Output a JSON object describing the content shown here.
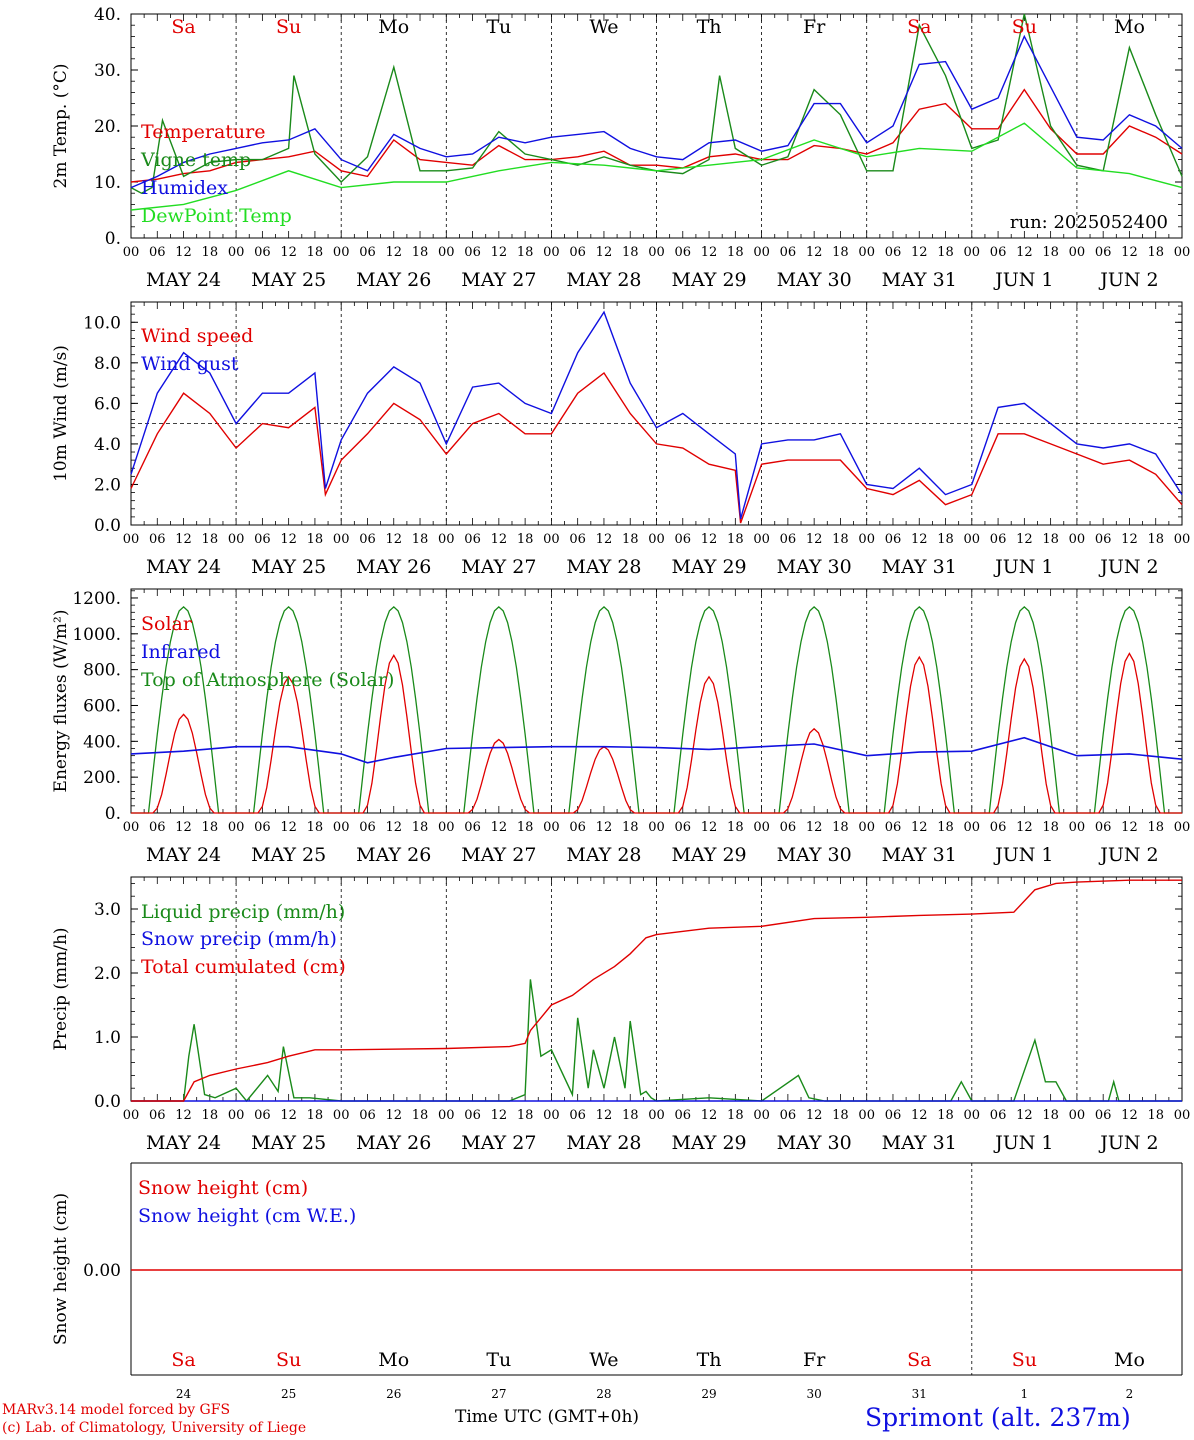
{
  "run_label": "run: 2025052400",
  "day_labels": [
    {
      "name": "Sa",
      "color": "#e00000"
    },
    {
      "name": "Su",
      "color": "#e00000"
    },
    {
      "name": "Mo",
      "color": "#000000"
    },
    {
      "name": "Tu",
      "color": "#000000"
    },
    {
      "name": "We",
      "color": "#000000"
    },
    {
      "name": "Th",
      "color": "#000000"
    },
    {
      "name": "Fr",
      "color": "#000000"
    },
    {
      "name": "Sa",
      "color": "#e00000"
    },
    {
      "name": "Su",
      "color": "#e00000"
    },
    {
      "name": "Mo",
      "color": "#000000"
    }
  ],
  "date_labels": [
    "MAY 24",
    "MAY 25",
    "MAY 26",
    "MAY 27",
    "MAY 28",
    "MAY 29",
    "MAY 30",
    "MAY 31",
    "JUN  1",
    "JUN  2"
  ],
  "hour_labels": [
    "00",
    "06",
    "12",
    "18"
  ],
  "day_numbers": [
    "24",
    "25",
    "26",
    "27",
    "28",
    "29",
    "30",
    "31",
    "1",
    "2"
  ],
  "footer": {
    "credit_line1": "MARv3.14 model forced by GFS",
    "credit_line2": "(c) Lab. of Climatology, University of Liege",
    "time_label": "Time UTC (GMT+0h)",
    "station": "Sprimont (alt. 237m)"
  },
  "colors": {
    "red": "#e00000",
    "green": "#1a8a1a",
    "blue": "#1010e0",
    "lightgreen": "#22dd22"
  },
  "chart_data": [
    {
      "type": "line",
      "ylabel": "2m Temp. (°C)",
      "ylim": [
        0,
        40
      ],
      "yticks": [
        "0.",
        "10.",
        "20.",
        "30.",
        "40."
      ],
      "yvals": [
        0,
        10,
        20,
        30,
        40
      ],
      "x_unit": "days since 2025-05-24 00 UTC",
      "series": [
        {
          "name": "Temperature",
          "color": "red",
          "x": [
            0,
            0.25,
            0.5,
            0.75,
            1,
            1.25,
            1.5,
            1.75,
            2,
            2.25,
            2.5,
            2.75,
            3,
            3.25,
            3.5,
            3.75,
            4,
            4.25,
            4.5,
            4.75,
            5,
            5.25,
            5.5,
            5.75,
            6,
            6.25,
            6.5,
            6.75,
            7,
            7.25,
            7.5,
            7.75,
            8,
            8.25,
            8.5,
            8.75,
            9,
            9.25,
            9.5,
            9.75,
            10
          ],
          "y": [
            10,
            10.5,
            11.5,
            12,
            13.5,
            14,
            14.5,
            15.5,
            12,
            11,
            17.5,
            14,
            13.5,
            13,
            16.5,
            14,
            14,
            14.5,
            15.5,
            13,
            13,
            12.5,
            14.5,
            15,
            14,
            14,
            16.5,
            16,
            15,
            17,
            23,
            24,
            19.5,
            19.5,
            26.5,
            19.5,
            15,
            15,
            20,
            18,
            15
          ]
        },
        {
          "name": "Vigne temp",
          "color": "green",
          "x": [
            0,
            0.1,
            0.2,
            0.3,
            0.5,
            0.75,
            1,
            1.25,
            1.5,
            1.55,
            1.75,
            2,
            2.25,
            2.5,
            2.75,
            3,
            3.25,
            3.5,
            3.75,
            4,
            4.25,
            4.5,
            4.75,
            5,
            5.25,
            5.5,
            5.6,
            5.75,
            6,
            6.25,
            6.5,
            6.75,
            7,
            7.25,
            7.5,
            7.75,
            8,
            8.25,
            8.5,
            8.75,
            9,
            9.25,
            9.5,
            9.75,
            10
          ],
          "y": [
            9,
            8,
            9,
            21,
            11,
            13.5,
            14,
            14,
            16,
            29,
            15,
            10,
            14.5,
            30.5,
            12,
            12,
            12.5,
            19,
            15,
            14,
            13,
            14.5,
            13,
            12,
            11.5,
            14,
            29,
            16,
            13,
            14.5,
            26.5,
            22,
            12,
            12,
            38,
            29,
            16,
            17.5,
            40,
            20,
            13,
            12,
            34,
            22,
            11
          ]
        },
        {
          "name": "Humidex",
          "color": "blue",
          "x": [
            0,
            0.25,
            0.5,
            0.75,
            1,
            1.25,
            1.5,
            1.75,
            2,
            2.25,
            2.5,
            2.75,
            3,
            3.25,
            3.5,
            3.75,
            4,
            4.25,
            4.5,
            4.75,
            5,
            5.25,
            5.5,
            5.75,
            6,
            6.25,
            6.5,
            6.75,
            7,
            7.25,
            7.5,
            7.75,
            8,
            8.25,
            8.5,
            8.75,
            9,
            9.25,
            9.5,
            9.75,
            10
          ],
          "y": [
            9,
            11,
            13.5,
            15,
            16,
            17,
            17.5,
            19.5,
            14,
            12,
            18.5,
            16,
            14.5,
            15,
            18,
            17,
            18,
            18.5,
            19,
            16,
            14.5,
            14,
            17,
            17.5,
            15.5,
            16.5,
            24,
            24,
            17,
            20,
            31,
            31.5,
            23,
            25,
            36,
            27,
            18,
            17.5,
            22,
            20,
            16
          ]
        },
        {
          "name": "DewPoint Temp",
          "color": "lightgreen",
          "x": [
            0,
            0.5,
            1,
            1.5,
            2,
            2.5,
            3,
            3.5,
            4,
            4.5,
            5,
            5.5,
            6,
            6.5,
            7,
            7.5,
            8,
            8.5,
            9,
            9.5,
            10
          ],
          "y": [
            5,
            6,
            8.5,
            12,
            9,
            10,
            10,
            12,
            13.5,
            13,
            12,
            13,
            14,
            17.5,
            14.5,
            16,
            15.5,
            20.5,
            12.5,
            11.5,
            9
          ]
        }
      ]
    },
    {
      "type": "line",
      "ylabel": "10m Wind (m/s)",
      "ylim": [
        0,
        11
      ],
      "yticks": [
        "0.0",
        "2.0",
        "4.0",
        "6.0",
        "8.0",
        "10.0"
      ],
      "yvals": [
        0,
        2,
        4,
        6,
        8,
        10
      ],
      "ref_line": 5,
      "x_unit": "days since 2025-05-24 00 UTC",
      "series": [
        {
          "name": "Wind speed",
          "color": "red",
          "x": [
            0,
            0.25,
            0.5,
            0.75,
            1,
            1.25,
            1.5,
            1.75,
            1.85,
            2,
            2.25,
            2.5,
            2.75,
            3,
            3.25,
            3.5,
            3.75,
            4,
            4.25,
            4.5,
            4.75,
            5,
            5.25,
            5.5,
            5.75,
            5.8,
            6,
            6.25,
            6.5,
            6.75,
            7,
            7.25,
            7.5,
            7.75,
            8,
            8.25,
            8.5,
            8.75,
            9,
            9.25,
            9.5,
            9.75,
            10
          ],
          "y": [
            1.8,
            4.5,
            6.5,
            5.5,
            3.8,
            5,
            4.8,
            5.8,
            1.5,
            3.2,
            4.5,
            6,
            5.2,
            3.5,
            5,
            5.5,
            4.5,
            4.5,
            6.5,
            7.5,
            5.5,
            4,
            3.8,
            3,
            2.7,
            0.1,
            3,
            3.2,
            3.2,
            3.2,
            1.8,
            1.5,
            2.2,
            1,
            1.5,
            4.5,
            4.5,
            4,
            3.5,
            3,
            3.2,
            2.5,
            1
          ]
        },
        {
          "name": "Wind gust",
          "color": "blue",
          "x": [
            0,
            0.25,
            0.5,
            0.75,
            1,
            1.25,
            1.5,
            1.75,
            1.85,
            2,
            2.25,
            2.5,
            2.75,
            3,
            3.25,
            3.5,
            3.75,
            4,
            4.25,
            4.5,
            4.75,
            5,
            5.25,
            5.5,
            5.75,
            5.8,
            6,
            6.25,
            6.5,
            6.75,
            7,
            7.25,
            7.5,
            7.75,
            8,
            8.25,
            8.5,
            8.75,
            9,
            9.25,
            9.5,
            9.75,
            10
          ],
          "y": [
            2.5,
            6.5,
            8.5,
            7.5,
            5,
            6.5,
            6.5,
            7.5,
            1.8,
            4.2,
            6.5,
            7.8,
            7,
            4,
            6.8,
            7,
            6,
            5.5,
            8.5,
            10.5,
            7,
            4.8,
            5.5,
            4.5,
            3.5,
            0.3,
            4,
            4.2,
            4.2,
            4.5,
            2,
            1.8,
            2.8,
            1.5,
            2,
            5.8,
            6,
            5,
            4,
            3.8,
            4,
            3.5,
            1.5
          ]
        }
      ]
    },
    {
      "type": "line",
      "ylabel": "Energy fluxes (W/m²)",
      "ylim": [
        0,
        1250
      ],
      "yticks": [
        "0.",
        "200.",
        "400.",
        "600.",
        "800.",
        "1000.",
        "1200."
      ],
      "yvals": [
        0,
        200,
        400,
        600,
        800,
        1000,
        1200
      ],
      "x_unit": "days since 2025-05-24 00 UTC",
      "toa_peak": 1150,
      "solar_peaks": [
        550,
        760,
        880,
        410,
        370,
        760,
        470,
        870,
        860,
        890
      ],
      "series": [
        {
          "name": "Solar",
          "color": "red"
        },
        {
          "name": "Infrared",
          "color": "blue",
          "x": [
            0,
            0.5,
            1,
            1.5,
            2,
            2.25,
            2.5,
            3,
            3.5,
            4,
            4.5,
            5,
            5.5,
            6,
            6.5,
            7,
            7.5,
            8,
            8.5,
            9,
            9.5,
            10
          ],
          "y": [
            330,
            345,
            370,
            370,
            330,
            280,
            310,
            360,
            365,
            370,
            370,
            365,
            355,
            370,
            385,
            320,
            340,
            345,
            420,
            320,
            330,
            300
          ]
        },
        {
          "name": "Top of Atmosphere (Solar)",
          "color": "green"
        }
      ]
    },
    {
      "type": "line",
      "ylabel": "Precip (mm/h)",
      "ylim": [
        0,
        3.5
      ],
      "yticks": [
        "0.0",
        "1.0",
        "2.0",
        "3.0"
      ],
      "yvals": [
        0,
        1,
        2,
        3
      ],
      "x_unit": "days since 2025-05-24 00 UTC",
      "series": [
        {
          "name": "Liquid precip (mm/h)",
          "color": "green",
          "x": [
            0,
            0.5,
            0.55,
            0.6,
            0.7,
            0.8,
            1,
            1.1,
            1.3,
            1.4,
            1.45,
            1.55,
            1.7,
            2,
            3,
            3.6,
            3.75,
            3.8,
            3.9,
            4,
            4.2,
            4.25,
            4.35,
            4.4,
            4.5,
            4.6,
            4.7,
            4.75,
            4.85,
            4.9,
            4.95,
            5,
            5.5,
            6,
            6.35,
            6.45,
            6.6,
            7,
            7.8,
            7.9,
            8,
            8.4,
            8.6,
            8.7,
            8.8,
            8.9,
            9,
            9.3,
            9.35,
            9.4,
            10
          ],
          "y": [
            0,
            0,
            0.7,
            1.2,
            0.1,
            0.05,
            0.2,
            0,
            0.4,
            0.15,
            0.85,
            0.05,
            0.05,
            0,
            0,
            0,
            0.1,
            1.9,
            0.7,
            0.8,
            0.1,
            1.3,
            0.2,
            0.8,
            0.2,
            1,
            0.2,
            1.25,
            0.1,
            0.15,
            0.05,
            0,
            0.05,
            0,
            0.4,
            0.05,
            0,
            0,
            0,
            0.3,
            0,
            0,
            0.95,
            0.3,
            0.3,
            0,
            0,
            0,
            0.3,
            0,
            0
          ]
        },
        {
          "name": "Snow precip (mm/h)",
          "color": "blue",
          "x": [
            0,
            10
          ],
          "y": [
            0,
            0
          ]
        },
        {
          "name": "Total cumulated (cm)",
          "color": "red",
          "x": [
            0,
            0.5,
            0.6,
            0.75,
            1,
            1.3,
            1.5,
            1.75,
            2,
            3,
            3.6,
            3.75,
            3.8,
            4,
            4.2,
            4.4,
            4.6,
            4.75,
            4.9,
            5,
            5.5,
            6,
            6.5,
            7,
            7.5,
            8,
            8.4,
            8.6,
            8.8,
            9,
            9.5,
            10
          ],
          "y": [
            0,
            0,
            0.3,
            0.4,
            0.5,
            0.6,
            0.7,
            0.8,
            0.8,
            0.82,
            0.85,
            0.9,
            1.1,
            1.5,
            1.65,
            1.9,
            2.1,
            2.3,
            2.55,
            2.6,
            2.7,
            2.73,
            2.85,
            2.87,
            2.9,
            2.92,
            2.95,
            3.3,
            3.4,
            3.42,
            3.45,
            3.45
          ]
        }
      ]
    },
    {
      "type": "line",
      "ylabel": "Snow height (cm)",
      "yticks": [
        "0.00"
      ],
      "yvals": [
        0
      ],
      "x_unit": "days since 2025-05-24 00 UTC",
      "series": [
        {
          "name": "Snow height (cm)",
          "color": "red",
          "x": [
            0,
            10
          ],
          "y": [
            0,
            0
          ]
        },
        {
          "name": "Snow height (cm W.E.)",
          "color": "blue"
        }
      ]
    }
  ]
}
